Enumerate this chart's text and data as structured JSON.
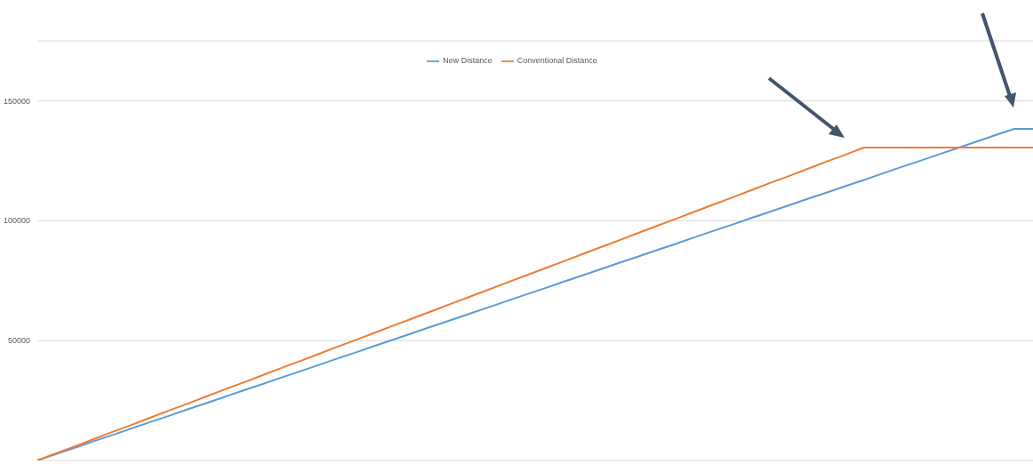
{
  "chart_data": {
    "type": "line",
    "categories": [
      null,
      null,
      null,
      null,
      null,
      null,
      null,
      null,
      null,
      null,
      null,
      null,
      null,
      null,
      null,
      null,
      null,
      null,
      null,
      null,
      null,
      null,
      null,
      null,
      null,
      null,
      null,
      null,
      null,
      null,
      null,
      null,
      null,
      null,
      null,
      null,
      null,
      null,
      null,
      null,
      null,
      null,
      null,
      null,
      null,
      null,
      null,
      null,
      null,
      null,
      null,
      null,
      null,
      null
    ],
    "series": [
      {
        "name": "New Distance",
        "color": "#5b9bd5",
        "values": [
          0,
          2700,
          5300,
          8000,
          10600,
          13300,
          16000,
          18600,
          21300,
          23900,
          26600,
          29300,
          31900,
          34600,
          37200,
          39900,
          42600,
          45200,
          47900,
          50500,
          53200,
          55900,
          58500,
          61200,
          63800,
          66500,
          69200,
          71800,
          74500,
          77100,
          79800,
          82500,
          85100,
          87800,
          90400,
          93100,
          95800,
          98400,
          101100,
          103700,
          106400,
          109100,
          111700,
          114400,
          117000,
          119700,
          122400,
          125000,
          127700,
          130300,
          133000,
          135700,
          138300,
          138300
        ]
      },
      {
        "name": "Conventional Distance",
        "color": "#ed7d31",
        "values": [
          0,
          3000,
          5900,
          8900,
          11900,
          14800,
          17800,
          20800,
          23700,
          26700,
          29700,
          32600,
          35600,
          38600,
          41500,
          44500,
          47500,
          50400,
          53400,
          56400,
          59300,
          62300,
          65300,
          68200,
          71200,
          74200,
          77100,
          80100,
          83000,
          86000,
          89000,
          91900,
          94900,
          97900,
          100800,
          103800,
          106800,
          109700,
          112700,
          115700,
          118600,
          121600,
          124600,
          127500,
          130500,
          130500,
          130500,
          130500,
          130500,
          130500,
          130500,
          130500,
          130500,
          130500
        ]
      }
    ],
    "ylim": [
      0,
      175000
    ],
    "yticks": [
      {
        "value": 0,
        "label": null
      },
      50000,
      100000,
      150000
    ],
    "grid": "y",
    "legend": "top",
    "marker": "none",
    "line_style": "solid",
    "tick_labels": "y"
  }
}
